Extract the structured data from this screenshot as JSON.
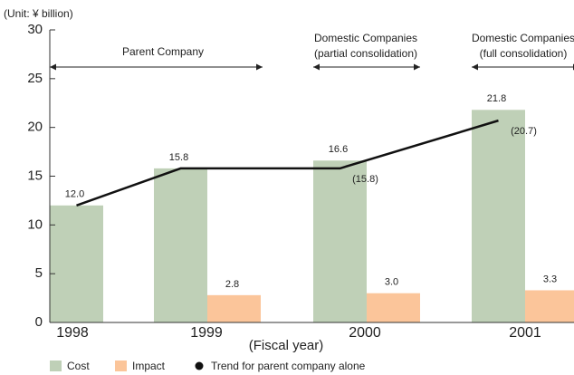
{
  "chart_data": {
    "type": "bar",
    "unit_label": "(Unit: ¥ billion)",
    "x_label": "(Fiscal year)",
    "categories": [
      "1998",
      "1999",
      "2000",
      "2001"
    ],
    "series": [
      {
        "name": "Cost",
        "color": "#bfd0b7",
        "values": [
          12.0,
          15.8,
          16.6,
          21.8
        ],
        "value_labels": [
          "12.0",
          "15.8",
          "16.6",
          "21.8"
        ]
      },
      {
        "name": "Impact",
        "color": "#fbc59a",
        "values": [
          null,
          2.8,
          3.0,
          3.3
        ],
        "value_labels": [
          null,
          "2.8",
          "3.0",
          "3.3"
        ]
      },
      {
        "name": "Trend for parent company alone",
        "type": "line",
        "color": "#111111",
        "values": [
          12.0,
          15.8,
          15.8,
          20.7
        ],
        "value_labels": [
          null,
          null,
          "(15.8)",
          "(20.7)"
        ]
      }
    ],
    "annotations": [
      [
        "Parent Company"
      ],
      [
        "Domestic Companies",
        "(partial consolidation)"
      ],
      [
        "Domestic Companies",
        "(full consolidation)"
      ]
    ],
    "ylim": [
      0,
      30
    ],
    "yticks": [
      0,
      5,
      10,
      15,
      20,
      25,
      30
    ],
    "grid": false
  }
}
